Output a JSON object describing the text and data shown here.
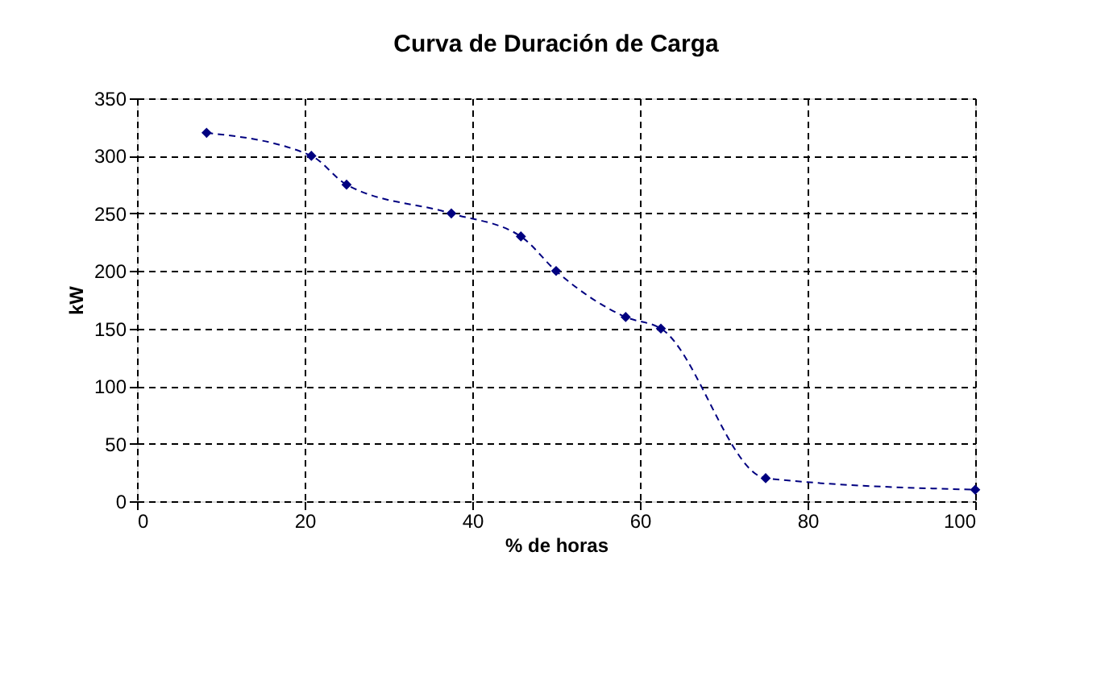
{
  "chart_data": {
    "type": "line",
    "title": "Curva de Duración de Carga",
    "xlabel": "% de horas",
    "ylabel": "kW",
    "x": [
      8.3,
      20.8,
      25,
      37.5,
      45.8,
      50,
      58.3,
      62.5,
      75,
      100
    ],
    "series": [
      {
        "color": "#000080",
        "values": [
          320,
          300,
          275,
          250,
          230,
          200,
          160,
          150,
          20,
          10
        ]
      }
    ],
    "xlim": [
      0,
      100
    ],
    "xticks": [
      0,
      20,
      40,
      60,
      80,
      100
    ],
    "ylim": [
      0,
      350
    ],
    "yticks": [
      0,
      50,
      100,
      150,
      200,
      250,
      300,
      350
    ],
    "grid": true,
    "marker": "diamond",
    "line_style": "dashed"
  }
}
